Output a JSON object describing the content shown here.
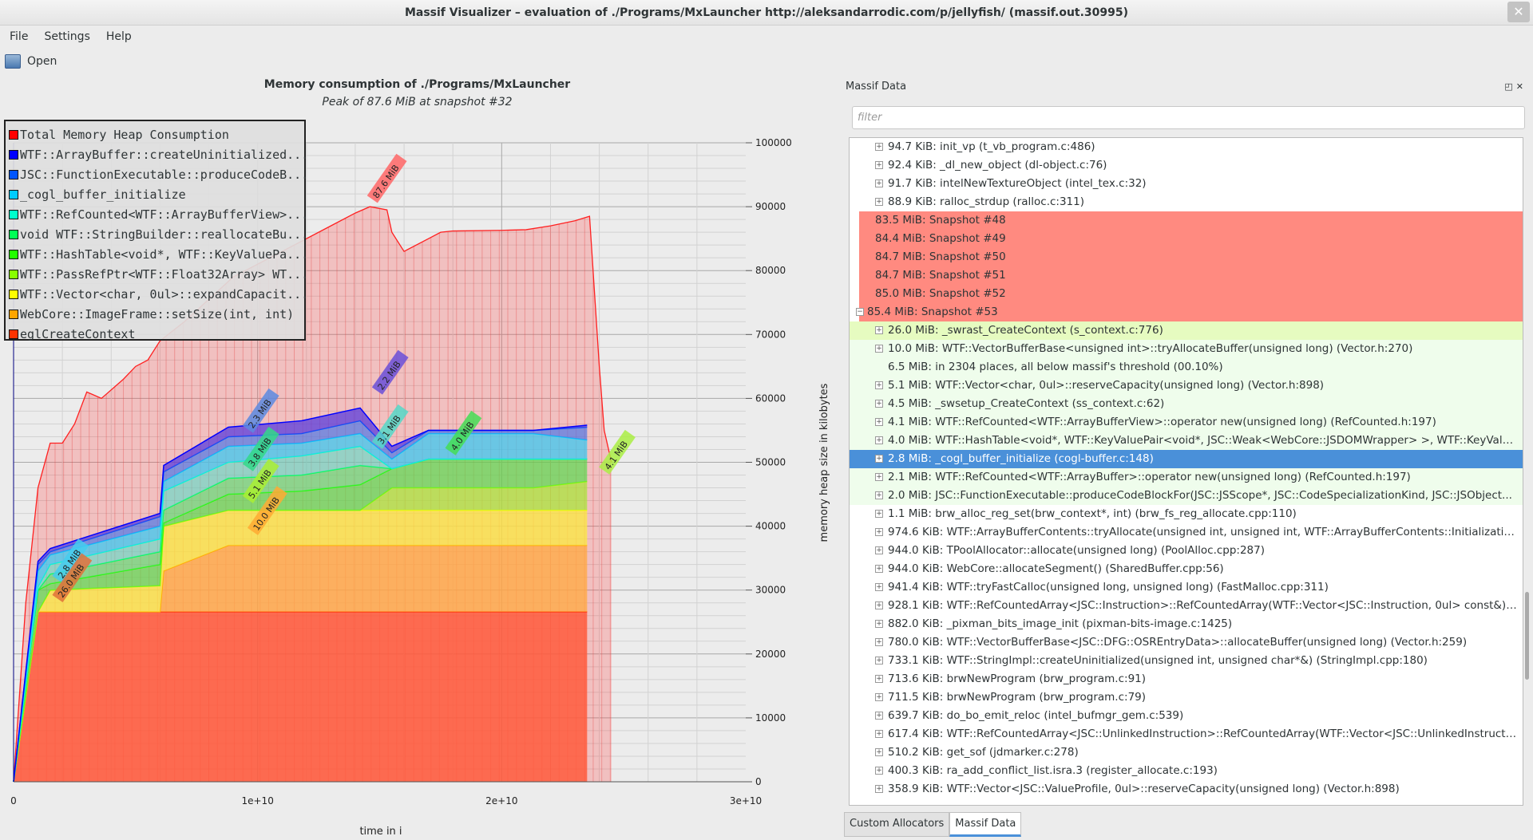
{
  "window": {
    "title": "Massif Visualizer – evaluation of ./Programs/MxLauncher http://aleksandarrodic.com/p/jellyfish/ (massif.out.30995)",
    "close": "✕"
  },
  "menu": [
    "File",
    "Settings",
    "Help"
  ],
  "toolbar": {
    "open": "Open"
  },
  "chart_data": {
    "type": "area",
    "title": "Memory consumption of ./Programs/MxLauncher",
    "subtitle": "Peak of 87.6 MiB at snapshot #32",
    "xlabel": "time in i",
    "ylabel": "memory heap size in kilobytes",
    "xlim": [
      0,
      30000000000.0
    ],
    "ylim": [
      0,
      100000
    ],
    "x_ticks": [
      "0",
      "1e+10",
      "2e+10",
      "3e+10"
    ],
    "y_ticks": [
      "0",
      "10000",
      "20000",
      "30000",
      "40000",
      "50000",
      "60000",
      "70000",
      "80000",
      "90000",
      "100000"
    ],
    "legend": [
      {
        "label": "Total Memory Heap Consumption",
        "color": "#ff0000"
      },
      {
        "label": "WTF::ArrayBuffer::createUninitialized...",
        "color": "#0000ff"
      },
      {
        "label": "JSC::FunctionExecutable::produceCodeB...",
        "color": "#0055ff"
      },
      {
        "label": "_cogl_buffer_initialize",
        "color": "#00ccff"
      },
      {
        "label": "WTF::RefCounted<WTF::ArrayBufferView>...",
        "color": "#00ffcc"
      },
      {
        "label": "void WTF::StringBuilder::reallocateBu...",
        "color": "#00ff55"
      },
      {
        "label": "WTF::HashTable<void*, WTF::KeyValuePa...",
        "color": "#22ff00"
      },
      {
        "label": "WTF::PassRefPtr<WTF::Float32Array> WT...",
        "color": "#88ff00"
      },
      {
        "label": "WTF::Vector<char, 0ul>::expandCapacit...",
        "color": "#ffff00"
      },
      {
        "label": "WebCore::ImageFrame::setSize(int, int)",
        "color": "#ffa500"
      },
      {
        "label": "eglCreateContext",
        "color": "#ff3300"
      }
    ],
    "total": {
      "x": [
        0,
        0.05,
        0.1,
        0.15,
        0.2,
        0.25,
        0.3,
        0.36,
        0.45,
        0.5,
        0.55,
        0.6,
        0.7,
        0.9,
        1.1,
        1.3,
        1.4,
        1.46,
        1.53,
        1.55,
        1.6,
        1.7,
        1.75,
        1.8,
        2.0,
        2.1,
        2.2,
        2.3,
        2.36,
        2.4,
        2.42,
        2.45,
        2.45
      ],
      "y": [
        0,
        28000,
        46000,
        53000,
        53000,
        56000,
        61000,
        60000,
        63000,
        65000,
        66000,
        69000,
        72000,
        79000,
        83000,
        87000,
        89000,
        90000,
        89500,
        86000,
        83000,
        85000,
        86000,
        86200,
        86300,
        86400,
        87000,
        87800,
        88500,
        65000,
        55000,
        50000,
        0
      ]
    },
    "stack_x": [
      0,
      0.1,
      0.15,
      0.6,
      0.615,
      0.88,
      1.18,
      1.42,
      1.55,
      1.7,
      2.13,
      2.35
    ],
    "stack_tops": [
      [
        0,
        26600,
        26600,
        26600,
        26600,
        26600,
        26600,
        26600,
        26600,
        26600,
        26600,
        26600
      ],
      [
        0,
        26600,
        26600,
        26600,
        33000,
        37000,
        37000,
        37000,
        37000,
        37000,
        37000,
        37000
      ],
      [
        0,
        26600,
        30000,
        30700,
        40000,
        42500,
        42500,
        42500,
        42500,
        42500,
        42500,
        42500
      ],
      [
        0,
        26600,
        30000,
        30700,
        40000,
        42500,
        42500,
        42500,
        46000,
        46000,
        46000,
        47000
      ],
      [
        0,
        30000,
        31000,
        34000,
        40500,
        45000,
        45500,
        46500,
        49000,
        50500,
        50500,
        50500
      ],
      [
        0,
        30000,
        32500,
        36000,
        42500,
        47500,
        48000,
        49500,
        49000,
        50500,
        50500,
        50500
      ],
      [
        0,
        30500,
        34000,
        38000,
        45500,
        50000,
        51000,
        52500,
        49000,
        50500,
        50500,
        50500
      ],
      [
        0,
        33000,
        35500,
        40000,
        47000,
        52500,
        53000,
        54500,
        50500,
        54500,
        54500,
        53500
      ],
      [
        0,
        34000,
        36000,
        41500,
        48500,
        54000,
        54500,
        56500,
        51500,
        55000,
        55000,
        55500
      ],
      [
        0,
        34500,
        36500,
        42000,
        49500,
        55500,
        56500,
        58500,
        52500,
        55000,
        55000,
        55800
      ]
    ],
    "annotations": [
      {
        "text": "87.6 MiB",
        "x": 1.48,
        "y": 91500,
        "color": "#ff6666"
      },
      {
        "text": "2.2 MiB",
        "x": 1.5,
        "y": 61500,
        "color": "#6a4fd8"
      },
      {
        "text": "2.3 MiB",
        "x": 0.97,
        "y": 55500,
        "color": "#5c8ae0"
      },
      {
        "text": "3.1 MiB",
        "x": 1.5,
        "y": 53000,
        "color": "#55d8c8"
      },
      {
        "text": "3.8 MiB",
        "x": 0.97,
        "y": 49500,
        "color": "#33d888"
      },
      {
        "text": "4.0 MiB",
        "x": 1.8,
        "y": 52000,
        "color": "#44dd55"
      },
      {
        "text": "5.1 MiB",
        "x": 0.97,
        "y": 44500,
        "color": "#aaee33"
      },
      {
        "text": "10.0 MiB",
        "x": 0.99,
        "y": 39500,
        "color": "#ffaa33"
      },
      {
        "text": "2.8 MiB",
        "x": 0.19,
        "y": 32000,
        "color": "#44ccee"
      },
      {
        "text": "26.0 MiB",
        "x": 0.19,
        "y": 29000,
        "color": "#e0713a"
      },
      {
        "text": "4.1 MiB",
        "x": 2.43,
        "y": 49000,
        "color": "#aaee44"
      }
    ]
  },
  "panel": {
    "title": "Massif Data",
    "filter_placeholder": "filter",
    "tabs": [
      "Custom Allocators",
      "Massif Data"
    ]
  },
  "tree": [
    {
      "t": "94.7 KiB: init_vp (t_vb_program.c:486)",
      "k": "l1"
    },
    {
      "t": "92.4 KiB: _dl_new_object (dl-object.c:76)",
      "k": "l1"
    },
    {
      "t": "91.7 KiB: intelNewTextureObject (intel_tex.c:32)",
      "k": "l1"
    },
    {
      "t": "88.9 KiB: ralloc_strdup (ralloc.c:311)",
      "k": "l1"
    },
    {
      "t": "83.5 MiB: Snapshot #48",
      "k": "snap"
    },
    {
      "t": "84.4 MiB: Snapshot #49",
      "k": "snap"
    },
    {
      "t": "84.7 MiB: Snapshot #50",
      "k": "snap"
    },
    {
      "t": "84.7 MiB: Snapshot #51",
      "k": "snap"
    },
    {
      "t": "85.0 MiB: Snapshot #52",
      "k": "snap"
    },
    {
      "t": "85.4 MiB: Snapshot #53",
      "k": "snap open"
    },
    {
      "t": "26.0 MiB: _swrast_CreateContext (s_context.c:776)",
      "k": "l1 hl"
    },
    {
      "t": "10.0 MiB: WTF::VectorBufferBase<unsigned int>::tryAllocateBuffer(unsigned long) (Vector.h:270)",
      "k": "l1 tint"
    },
    {
      "t": "6.5 MiB: in 2304 places, all below massif's threshold (00.10%)",
      "k": "l1 tint leaf"
    },
    {
      "t": "5.1 MiB: WTF::Vector<char, 0ul>::reserveCapacity(unsigned long) (Vector.h:898)",
      "k": "l1 tint"
    },
    {
      "t": "4.5 MiB: _swsetup_CreateContext (ss_context.c:62)",
      "k": "l1 tint"
    },
    {
      "t": "4.1 MiB: WTF::RefCounted<WTF::ArrayBufferView>::operator new(unsigned long) (RefCounted.h:197)",
      "k": "l1 tint"
    },
    {
      "t": "4.0 MiB: WTF::HashTable<void*, WTF::KeyValuePair<void*, JSC::Weak<WebCore::JSDOMWrapper> >, WTF::KeyValue...",
      "k": "l1 tint"
    },
    {
      "t": "2.8 MiB: _cogl_buffer_initialize (cogl-buffer.c:148)",
      "k": "l1 sel"
    },
    {
      "t": "2.1 MiB: WTF::RefCounted<WTF::ArrayBuffer>::operator new(unsigned long) (RefCounted.h:197)",
      "k": "l1 tint"
    },
    {
      "t": "2.0 MiB: JSC::FunctionExecutable::produceCodeBlockFor(JSC::JSScope*, JSC::CodeSpecializationKind, JSC::JSObject...",
      "k": "l1 tint"
    },
    {
      "t": "1.1 MiB: brw_alloc_reg_set(brw_context*, int) (brw_fs_reg_allocate.cpp:110)",
      "k": "l1"
    },
    {
      "t": "974.6 KiB: WTF::ArrayBufferContents::tryAllocate(unsigned int, unsigned int, WTF::ArrayBufferContents::Initialization...",
      "k": "l1"
    },
    {
      "t": "944.0 KiB: TPoolAllocator::allocate(unsigned long) (PoolAlloc.cpp:287)",
      "k": "l1"
    },
    {
      "t": "944.0 KiB: WebCore::allocateSegment() (SharedBuffer.cpp:56)",
      "k": "l1"
    },
    {
      "t": "941.4 KiB: WTF::tryFastCalloc(unsigned long, unsigned long) (FastMalloc.cpp:311)",
      "k": "l1"
    },
    {
      "t": "928.1 KiB: WTF::RefCountedArray<JSC::Instruction>::RefCountedArray(WTF::Vector<JSC::Instruction, 0ul> const&) (...",
      "k": "l1"
    },
    {
      "t": "882.0 KiB: _pixman_bits_image_init (pixman-bits-image.c:1425)",
      "k": "l1"
    },
    {
      "t": "780.0 KiB: WTF::VectorBufferBase<JSC::DFG::OSREntryData>::allocateBuffer(unsigned long) (Vector.h:259)",
      "k": "l1"
    },
    {
      "t": "733.1 KiB: WTF::StringImpl::createUninitialized(unsigned int, unsigned char*&) (StringImpl.cpp:180)",
      "k": "l1"
    },
    {
      "t": "713.6 KiB: brwNewProgram (brw_program.c:91)",
      "k": "l1"
    },
    {
      "t": "711.5 KiB: brwNewProgram (brw_program.c:79)",
      "k": "l1"
    },
    {
      "t": "639.7 KiB: do_bo_emit_reloc (intel_bufmgr_gem.c:539)",
      "k": "l1"
    },
    {
      "t": "617.4 KiB: WTF::RefCountedArray<JSC::UnlinkedInstruction>::RefCountedArray(WTF::Vector<JSC::UnlinkedInstructio...",
      "k": "l1"
    },
    {
      "t": "510.2 KiB: get_sof (jdmarker.c:278)",
      "k": "l1"
    },
    {
      "t": "400.3 KiB: ra_add_conflict_list.isra.3 (register_allocate.c:193)",
      "k": "l1"
    },
    {
      "t": "358.9 KiB: WTF::Vector<JSC::ValueProfile, 0ul>::reserveCapacity(unsigned long) (Vector.h:898)",
      "k": "l1"
    }
  ]
}
